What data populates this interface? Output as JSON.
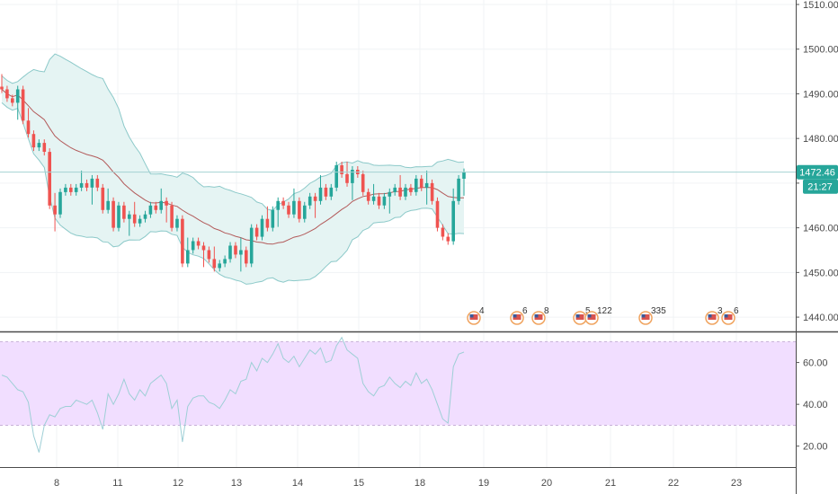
{
  "colors": {
    "up": "#26a69a",
    "down": "#ef5350",
    "band": "#8cc9c9",
    "band_fill": "#e5f4f3",
    "basis": "#b35b5b",
    "rsi_line": "#9ecfd6",
    "rsi_band": "#f1deff",
    "price_line": "#a5d2d2",
    "tag_bg": "#26a69a"
  },
  "price_axis": {
    "ticks": [
      "1510.00",
      "1500.00",
      "1490.00",
      "1480.00",
      "1470.00",
      "1460.00",
      "1450.00",
      "1440.00"
    ]
  },
  "rsi_axis": {
    "ticks": [
      "60.00",
      "40.00",
      "20.00"
    ]
  },
  "x_axis": {
    "ticks": [
      "8",
      "11",
      "12",
      "13",
      "14",
      "15",
      "18",
      "19",
      "20",
      "21",
      "22",
      "23"
    ]
  },
  "price_tag": {
    "price": "1472.46",
    "countdown": "21:27"
  },
  "events": [
    {
      "label": "4",
      "icon": "us-flag-icon"
    },
    {
      "label": "6",
      "icon": "us-flag-icon"
    },
    {
      "label": "8",
      "icon": "us-flag-icon"
    },
    {
      "label": "5",
      "icon": "us-flag-icon"
    },
    {
      "label": "122",
      "icon": "us-flag-icon"
    },
    {
      "label": "335",
      "icon": "us-flag-icon"
    },
    {
      "label": "3",
      "icon": "us-flag-icon"
    },
    {
      "label": "6",
      "icon": "us-flag-icon"
    }
  ],
  "chart_data": [
    {
      "type": "candlestick",
      "title": "",
      "ylim": [
        1437,
        1511
      ],
      "x_ticks": [
        "8",
        "11",
        "12",
        "13",
        "14",
        "15",
        "18",
        "19",
        "20",
        "21",
        "22",
        "23"
      ],
      "indicators": [
        "Bollinger Bands"
      ],
      "last_price": 1472.46,
      "close_series": [
        1491,
        1489,
        1488,
        1491,
        1484,
        1481,
        1478,
        1479,
        1477,
        1465,
        1463,
        1468,
        1469,
        1468,
        1469,
        1470,
        1469,
        1471,
        1469,
        1464,
        1466,
        1460,
        1465,
        1462,
        1463,
        1461,
        1462,
        1463,
        1465,
        1464,
        1466,
        1465,
        1460,
        1462,
        1452,
        1455,
        1457,
        1456,
        1455,
        1453,
        1451,
        1452,
        1453,
        1456,
        1454,
        1455,
        1452,
        1460,
        1458,
        1462,
        1460,
        1464,
        1466,
        1465,
        1463,
        1466,
        1462,
        1465,
        1467,
        1466,
        1469,
        1467,
        1469,
        1474,
        1472,
        1470,
        1473,
        1472,
        1468,
        1466,
        1467,
        1465,
        1467,
        1468,
        1469,
        1467,
        1469,
        1468,
        1471,
        1469,
        1470,
        1466,
        1460,
        1458,
        1457,
        1466,
        1471,
        1472.46
      ]
    },
    {
      "type": "line",
      "title": "",
      "ylim": [
        10,
        74
      ],
      "band": [
        30,
        70
      ],
      "y_ticks": [
        60,
        40,
        20
      ],
      "values": [
        54,
        53,
        50,
        47,
        46,
        41,
        25,
        17,
        30,
        35,
        34,
        38,
        39,
        39,
        42,
        41,
        40,
        42,
        36,
        28,
        45,
        40,
        45,
        52,
        45,
        42,
        47,
        44,
        50,
        52,
        54,
        50,
        38,
        42,
        22,
        39,
        43,
        44,
        44,
        41,
        40,
        38,
        42,
        47,
        45,
        51,
        52,
        60,
        56,
        62,
        60,
        64,
        69,
        62,
        60,
        63,
        58,
        62,
        66,
        64,
        67,
        60,
        61,
        68,
        72,
        66,
        64,
        62,
        50,
        46,
        44,
        48,
        49,
        53,
        50,
        48,
        51,
        49,
        55,
        50,
        52,
        47,
        40,
        33,
        31,
        58,
        64,
        65
      ]
    }
  ]
}
